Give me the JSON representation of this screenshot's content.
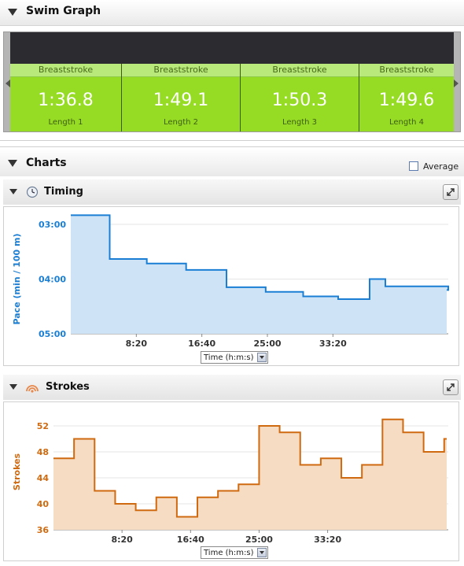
{
  "swim_graph": {
    "title": "Swim Graph",
    "lengths": [
      {
        "stroke": "Breaststroke",
        "time": "1:36.8",
        "label": "Length 1"
      },
      {
        "stroke": "Breaststroke",
        "time": "1:49.1",
        "label": "Length 2"
      },
      {
        "stroke": "Breaststroke",
        "time": "1:50.3",
        "label": "Length 3"
      },
      {
        "stroke": "Breaststroke",
        "time": "1:49.6",
        "label": "Length 4"
      }
    ]
  },
  "charts": {
    "title": "Charts",
    "average_label": "Average",
    "average_checked": false
  },
  "timing": {
    "title": "Timing",
    "icon": "clock-icon",
    "select_value": "Time (h:m:s)",
    "chart_data": {
      "type": "area",
      "ylabel": "Pace (min / 100 m)",
      "y_ticks": [
        "03:00",
        "04:00",
        "05:00"
      ],
      "y_range_seconds": [
        180,
        300
      ],
      "y_inverted": true,
      "x_ticks": [
        "8:20",
        "16:40",
        "25:00",
        "33:20"
      ],
      "x_range_seconds": [
        0,
        2880
      ],
      "color": "#1a7fd4",
      "fill": "#cfe3f7",
      "x_seconds": [
        0,
        297,
        580,
        880,
        1188,
        1487,
        1773,
        2040,
        2280,
        2400,
        2880
      ],
      "x": [
        "0:00",
        "4:57",
        "9:40",
        "14:40",
        "19:48",
        "24:47",
        "29:33",
        "34:00",
        "38:00",
        "40:00",
        "48:00"
      ],
      "y": [
        "02:50",
        "03:38",
        "03:43",
        "03:50",
        "04:09",
        "04:14",
        "04:19",
        "04:22",
        "04:00",
        "04:08",
        "04:12"
      ]
    }
  },
  "strokes": {
    "title": "Strokes",
    "icon": "wave-icon",
    "select_value": "Time (h:m:s)",
    "chart_data": {
      "type": "area",
      "ylabel": "Strokes",
      "y_ticks": [
        "36",
        "40",
        "44",
        "48",
        "52"
      ],
      "ylim": [
        36,
        53
      ],
      "x_ticks": [
        "8:20",
        "16:40",
        "25:00",
        "33:20"
      ],
      "x_range_seconds": [
        0,
        2880
      ],
      "color": "#d06a10",
      "fill": "#f5dcc3",
      "x_seconds": [
        0,
        150,
        300,
        450,
        600,
        750,
        900,
        1050,
        1200,
        1350,
        1500,
        1650,
        1800,
        1950,
        2100,
        2250,
        2400,
        2550,
        2700,
        2850
      ],
      "x": [
        "0:00",
        "2:30",
        "5:00",
        "7:30",
        "10:00",
        "12:30",
        "15:00",
        "17:30",
        "20:00",
        "22:30",
        "25:00",
        "27:30",
        "30:00",
        "32:30",
        "35:00",
        "37:30",
        "40:00",
        "42:30",
        "45:00",
        "47:30"
      ],
      "values": [
        47,
        50,
        42,
        40,
        39,
        41,
        38,
        41,
        42,
        43,
        52,
        51,
        46,
        47,
        44,
        46,
        53,
        51,
        48,
        50
      ]
    }
  }
}
